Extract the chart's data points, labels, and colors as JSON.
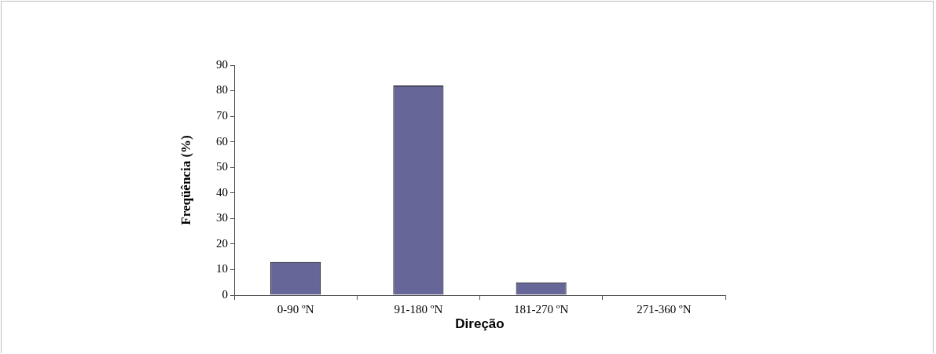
{
  "chart_data": {
    "type": "bar",
    "xlabel": "Direção",
    "ylabel": "Freqüência (%)",
    "categories": [
      "0-90 ºN",
      "91-180 ºN",
      "181-270 ºN",
      "271-360 ºN"
    ],
    "values": [
      13,
      82,
      5,
      0
    ],
    "color": "#666699",
    "ylim": [
      0,
      90
    ],
    "yticks": [
      0,
      10,
      20,
      30,
      40,
      50,
      60,
      70,
      80,
      90
    ]
  }
}
